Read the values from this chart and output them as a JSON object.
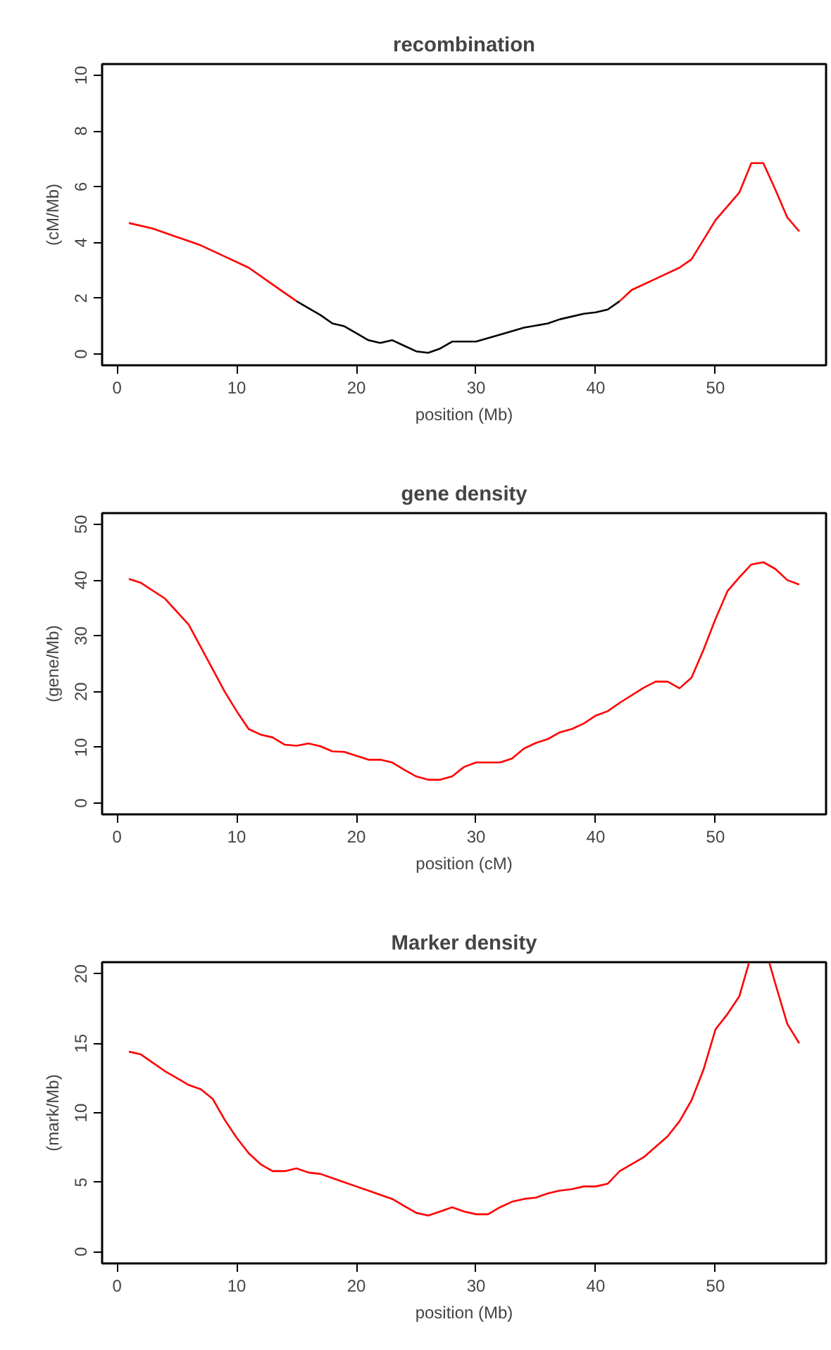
{
  "chart_data": [
    {
      "type": "line",
      "title": "recombination",
      "xlabel": "position (Mb)",
      "ylabel": "(cM/Mb)",
      "xlim": [
        -1.24,
        59.24
      ],
      "ylim": [
        -0.4,
        10.4
      ],
      "xticks": [
        0,
        10,
        20,
        30,
        40,
        50
      ],
      "yticks": [
        0,
        2,
        4,
        6,
        8,
        10
      ],
      "grid": false,
      "series": [
        {
          "color": "#ff0000",
          "x": [
            1,
            3,
            5,
            7,
            9,
            11,
            13,
            15
          ],
          "values": [
            4.7,
            4.5,
            4.2,
            3.9,
            3.5,
            3.1,
            2.5,
            1.9
          ]
        },
        {
          "color": "#000000",
          "x": [
            15,
            17,
            18,
            19,
            20,
            21,
            22,
            23,
            24,
            25,
            26,
            27,
            28,
            29,
            30,
            32,
            34,
            36,
            37,
            39,
            40,
            41,
            42
          ],
          "values": [
            1.9,
            1.4,
            1.1,
            1.0,
            0.75,
            0.5,
            0.4,
            0.5,
            0.3,
            0.1,
            0.05,
            0.2,
            0.45,
            0.45,
            0.45,
            0.7,
            0.95,
            1.1,
            1.25,
            1.45,
            1.5,
            1.6,
            1.9
          ]
        },
        {
          "color": "#ff0000",
          "x": [
            42,
            43,
            45,
            47,
            48,
            49,
            50,
            51,
            52,
            53,
            54,
            55,
            56,
            57
          ],
          "values": [
            1.9,
            2.3,
            2.7,
            3.1,
            3.4,
            4.1,
            4.8,
            5.3,
            5.8,
            6.85,
            6.85,
            5.9,
            4.9,
            4.4
          ]
        }
      ]
    },
    {
      "type": "line",
      "title": "gene density",
      "xlabel": "position (cM)",
      "ylabel": "(gene/Mb)",
      "xlim": [
        -1.24,
        59.24
      ],
      "ylim": [
        -2,
        52
      ],
      "xticks": [
        0,
        10,
        20,
        30,
        40,
        50
      ],
      "yticks": [
        0,
        10,
        20,
        30,
        40,
        50
      ],
      "grid": false,
      "series": [
        {
          "color": "#ff0000",
          "x": [
            1,
            2,
            4,
            6,
            8,
            9,
            10,
            11,
            12,
            13,
            14,
            15,
            16,
            17,
            18,
            19,
            20,
            21,
            22,
            23,
            24,
            25,
            26,
            27,
            28,
            29,
            30,
            32,
            33,
            34,
            35,
            36,
            37,
            38,
            39,
            40,
            41,
            42,
            44,
            45,
            46,
            47,
            48,
            49,
            50,
            51,
            52,
            53,
            54,
            55,
            56,
            57
          ],
          "values": [
            40.2,
            39.5,
            36.7,
            32,
            24,
            20,
            16.5,
            13.3,
            12.3,
            11.8,
            10.5,
            10.3,
            10.7,
            10.2,
            9.3,
            9.2,
            8.5,
            7.8,
            7.8,
            7.3,
            6,
            4.8,
            4.2,
            4.2,
            4.8,
            6.5,
            7.3,
            7.3,
            8,
            9.8,
            10.8,
            11.5,
            12.7,
            13.3,
            14.3,
            15.7,
            16.5,
            18,
            20.7,
            21.8,
            21.8,
            20.6,
            22.5,
            27.5,
            33,
            38,
            40.5,
            42.8,
            43.2,
            42,
            40,
            39.2
          ]
        }
      ]
    },
    {
      "type": "line",
      "title": "Marker density",
      "xlabel": "position (Mb)",
      "ylabel": "(mark/Mb)",
      "xlim": [
        -1.24,
        59.24
      ],
      "ylim": [
        -0.84,
        20.84
      ],
      "xticks": [
        0,
        10,
        20,
        30,
        40,
        50
      ],
      "yticks": [
        0,
        5,
        10,
        15,
        20
      ],
      "grid": false,
      "series": [
        {
          "color": "#ff0000",
          "x": [
            1,
            2,
            3,
            4,
            5,
            6,
            7,
            8,
            9,
            10,
            11,
            12,
            13,
            14,
            15,
            16,
            17,
            18,
            19,
            20,
            21,
            22,
            23,
            24,
            25,
            26,
            27,
            28,
            29,
            30,
            31,
            32,
            33,
            34,
            35,
            36,
            37,
            38,
            39,
            40,
            41,
            42,
            44,
            46,
            47,
            48,
            49,
            50,
            51,
            52,
            52.8,
            53.6,
            54.5,
            55,
            56,
            57
          ],
          "values": [
            14.4,
            14.2,
            13.6,
            13,
            12.5,
            12,
            11.7,
            11,
            9.5,
            8.2,
            7.1,
            6.3,
            5.8,
            5.8,
            6.0,
            5.7,
            5.6,
            5.3,
            5.0,
            4.7,
            4.4,
            4.1,
            3.8,
            3.3,
            2.8,
            2.6,
            2.9,
            3.2,
            2.9,
            2.7,
            2.7,
            3.2,
            3.6,
            3.8,
            3.9,
            4.2,
            4.4,
            4.5,
            4.7,
            4.7,
            4.9,
            5.8,
            6.8,
            8.3,
            9.4,
            10.9,
            13.1,
            16.0,
            17.1,
            18.4,
            20.8,
            null,
            20.8,
            19.3,
            16.4,
            15
          ]
        }
      ]
    }
  ]
}
